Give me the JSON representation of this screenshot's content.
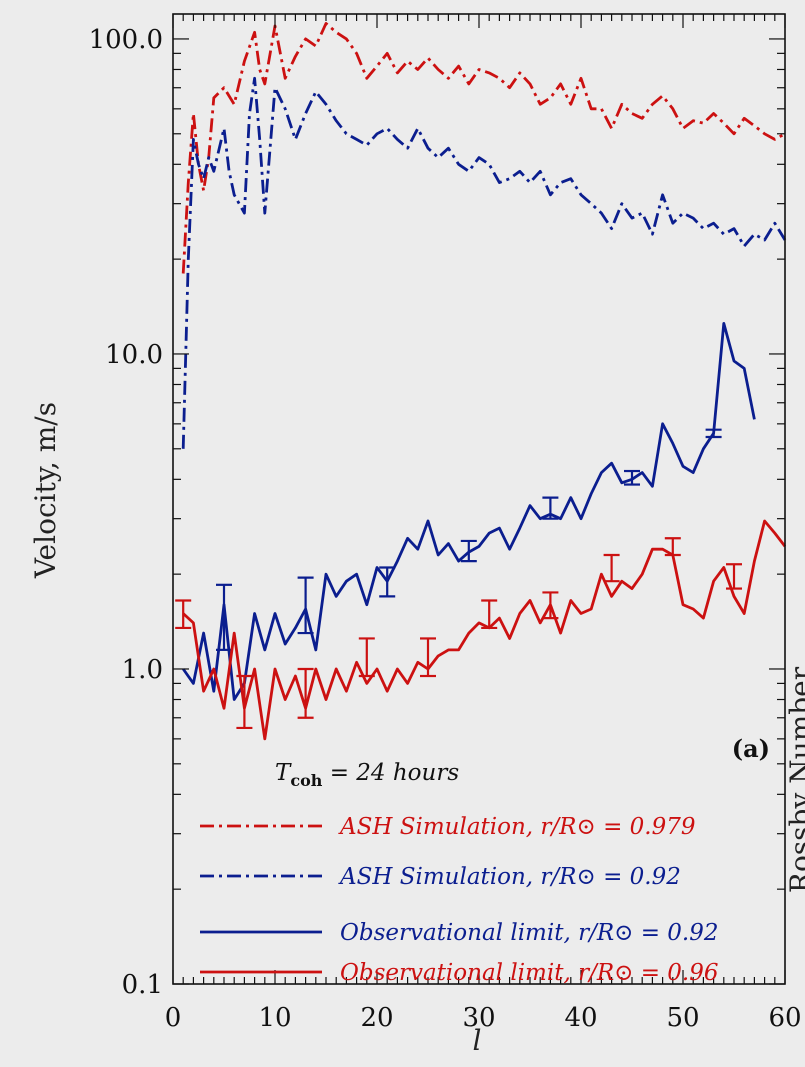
{
  "chart_data": {
    "type": "line",
    "xlabel": "l",
    "ylabel": "Velocity, m/s",
    "right_label": "Rossby Number",
    "panel_label": "(a)",
    "yscale": "log",
    "xlim": [
      0,
      60
    ],
    "ylim": [
      0.1,
      120
    ],
    "x_ticks": [
      0,
      10,
      20,
      30,
      40,
      50,
      60
    ],
    "x_tick_labels": [
      "0",
      "10",
      "20",
      "30",
      "40",
      "50",
      "60"
    ],
    "y_ticks": [
      0.1,
      1.0,
      10.0,
      100.0
    ],
    "y_tick_labels": [
      "0.1",
      "1.0",
      "10.0",
      "100.0"
    ],
    "legend": {
      "title_prefix": "T",
      "title_sub": "coh",
      "title_value": "= 24 hours",
      "entries": [
        {
          "label": "ASH Simulation, r/R⊙ = 0.979",
          "color": "#cc1111",
          "style": "dashdot"
        },
        {
          "label": "ASH Simulation, r/R⊙ = 0.92",
          "color": "#0b1e8f",
          "style": "dashdot"
        },
        {
          "label": "Observational limit, r/R⊙ = 0.92",
          "color": "#0b1e8f",
          "style": "solid"
        },
        {
          "label": "Observational limit, r/R⊙ = 0.96",
          "color": "#cc1111",
          "style": "solid"
        }
      ]
    },
    "series": [
      {
        "name": "ASH Simulation, r/R⊙ = 0.979",
        "color": "#cc1111",
        "style": "dashdot",
        "x": [
          1,
          1.5,
          2,
          2.5,
          3,
          3.5,
          4,
          5,
          6,
          7,
          8,
          8.5,
          9,
          10,
          11,
          12,
          13,
          14,
          15,
          16,
          17,
          18,
          19,
          20,
          21,
          22,
          23,
          24,
          25,
          26,
          27,
          28,
          29,
          30,
          31,
          32,
          33,
          34,
          35,
          36,
          37,
          38,
          39,
          40,
          41,
          42,
          43,
          44,
          45,
          46,
          47,
          48,
          49,
          50,
          51,
          52,
          53,
          54,
          55,
          56,
          57,
          58,
          59,
          60
        ],
        "y": [
          18,
          35,
          58,
          40,
          33,
          42,
          65,
          70,
          62,
          85,
          105,
          80,
          72,
          110,
          75,
          88,
          100,
          95,
          112,
          105,
          100,
          90,
          75,
          82,
          90,
          78,
          85,
          80,
          87,
          80,
          75,
          82,
          72,
          80,
          78,
          75,
          70,
          78,
          72,
          62,
          65,
          72,
          62,
          75,
          60,
          60,
          52,
          62,
          58,
          56,
          62,
          66,
          60,
          52,
          55,
          54,
          58,
          54,
          50,
          56,
          53,
          50,
          48,
          50
        ],
        "error_bars": []
      },
      {
        "name": "ASH Simulation, r/R⊙ = 0.92",
        "color": "#0b1e8f",
        "style": "dashdot",
        "x": [
          1,
          1.5,
          2,
          2.5,
          3,
          3.5,
          4,
          5,
          5.5,
          6,
          7,
          7.5,
          8,
          8.5,
          9,
          10,
          11,
          12,
          13,
          14,
          15,
          16,
          17,
          18,
          19,
          20,
          21,
          22,
          23,
          24,
          25,
          26,
          27,
          28,
          29,
          30,
          31,
          32,
          33,
          34,
          35,
          36,
          37,
          38,
          39,
          40,
          41,
          42,
          43,
          44,
          45,
          46,
          47,
          48,
          49,
          50,
          51,
          52,
          53,
          54,
          55,
          56,
          57,
          58,
          59,
          60
        ],
        "y": [
          5,
          20,
          48,
          40,
          36,
          42,
          38,
          52,
          38,
          32,
          28,
          58,
          75,
          48,
          28,
          70,
          60,
          48,
          58,
          68,
          62,
          55,
          50,
          48,
          46,
          50,
          52,
          48,
          45,
          52,
          45,
          42,
          45,
          40,
          38,
          42,
          40,
          35,
          36,
          38,
          35,
          38,
          32,
          35,
          36,
          32,
          30,
          28,
          25,
          30,
          27,
          28,
          24,
          32,
          26,
          28,
          27,
          25,
          26,
          24,
          25,
          22,
          24,
          23,
          26,
          23
        ],
        "error_bars": []
      },
      {
        "name": "Observational limit, r/R⊙ = 0.92",
        "color": "#0b1e8f",
        "style": "solid",
        "x": [
          1,
          2,
          3,
          4,
          5,
          6,
          7,
          8,
          9,
          10,
          11,
          12,
          13,
          14,
          15,
          16,
          17,
          18,
          19,
          20,
          21,
          22,
          23,
          24,
          25,
          26,
          27,
          28,
          29,
          30,
          31,
          32,
          33,
          34,
          35,
          36,
          37,
          38,
          39,
          40,
          41,
          42,
          43,
          44,
          45,
          46,
          47,
          48,
          49,
          50,
          51,
          52,
          53,
          54,
          55,
          56,
          57
        ],
        "y": [
          1.0,
          0.9,
          1.3,
          0.85,
          1.6,
          0.8,
          0.9,
          1.5,
          1.15,
          1.5,
          1.2,
          1.35,
          1.55,
          1.15,
          2.0,
          1.7,
          1.9,
          2.0,
          1.6,
          2.1,
          1.9,
          2.2,
          2.6,
          2.4,
          2.95,
          2.3,
          2.5,
          2.2,
          2.35,
          2.45,
          2.7,
          2.8,
          2.4,
          2.8,
          3.3,
          3.0,
          3.1,
          3.0,
          3.5,
          3.0,
          3.6,
          4.2,
          4.5,
          3.9,
          4.0,
          4.2,
          3.8,
          6.0,
          5.2,
          4.4,
          4.2,
          5.0,
          5.6,
          12.5,
          9.5,
          9.0,
          6.2
        ],
        "error_bars": [
          {
            "x": 5,
            "y": 1.4,
            "low": 1.15,
            "high": 1.85
          },
          {
            "x": 13,
            "y": 1.6,
            "low": 1.3,
            "high": 1.95
          },
          {
            "x": 21,
            "y": 1.9,
            "low": 1.7,
            "high": 2.1
          },
          {
            "x": 29,
            "y": 2.35,
            "low": 2.2,
            "high": 2.55
          },
          {
            "x": 37,
            "y": 3.2,
            "low": 3.0,
            "high": 3.5
          },
          {
            "x": 45,
            "y": 4.05,
            "low": 3.85,
            "high": 4.25
          },
          {
            "x": 53,
            "y": 5.6,
            "low": 5.45,
            "high": 5.75
          }
        ]
      },
      {
        "name": "Observational limit, r/R⊙ = 0.96",
        "color": "#cc1111",
        "style": "solid",
        "x": [
          1,
          2,
          3,
          4,
          5,
          6,
          7,
          8,
          9,
          10,
          11,
          12,
          13,
          14,
          15,
          16,
          17,
          18,
          19,
          20,
          21,
          22,
          23,
          24,
          25,
          26,
          27,
          28,
          29,
          30,
          31,
          32,
          33,
          34,
          35,
          36,
          37,
          38,
          39,
          40,
          41,
          42,
          43,
          44,
          45,
          46,
          47,
          48,
          49,
          50,
          51,
          52,
          53,
          54,
          55,
          56,
          57,
          58,
          59,
          60
        ],
        "y": [
          1.5,
          1.4,
          0.85,
          1.0,
          0.75,
          1.3,
          0.75,
          1.0,
          0.6,
          1.0,
          0.8,
          0.95,
          0.75,
          1.0,
          0.8,
          1.0,
          0.85,
          1.05,
          0.9,
          1.0,
          0.85,
          1.0,
          0.9,
          1.05,
          1.0,
          1.1,
          1.15,
          1.15,
          1.3,
          1.4,
          1.35,
          1.45,
          1.25,
          1.5,
          1.65,
          1.4,
          1.6,
          1.3,
          1.65,
          1.5,
          1.55,
          2.0,
          1.7,
          1.9,
          1.8,
          2.0,
          2.4,
          2.4,
          2.3,
          1.6,
          1.55,
          1.45,
          1.9,
          2.1,
          1.7,
          1.5,
          2.2,
          2.95,
          2.7,
          2.45
        ],
        "error_bars": [
          {
            "x": 1,
            "y": 1.5,
            "low": 1.35,
            "high": 1.65
          },
          {
            "x": 7,
            "y": 0.8,
            "low": 0.65,
            "high": 0.95
          },
          {
            "x": 13,
            "y": 0.85,
            "low": 0.7,
            "high": 1.0
          },
          {
            "x": 19,
            "y": 1.1,
            "low": 0.95,
            "high": 1.25
          },
          {
            "x": 25,
            "y": 1.1,
            "low": 0.95,
            "high": 1.25
          },
          {
            "x": 31,
            "y": 1.5,
            "low": 1.35,
            "high": 1.65
          },
          {
            "x": 37,
            "y": 1.6,
            "low": 1.45,
            "high": 1.75
          },
          {
            "x": 43,
            "y": 2.1,
            "low": 1.9,
            "high": 2.3
          },
          {
            "x": 49,
            "y": 2.45,
            "low": 2.3,
            "high": 2.6
          },
          {
            "x": 55,
            "y": 1.95,
            "low": 1.8,
            "high": 2.15
          }
        ]
      }
    ]
  }
}
